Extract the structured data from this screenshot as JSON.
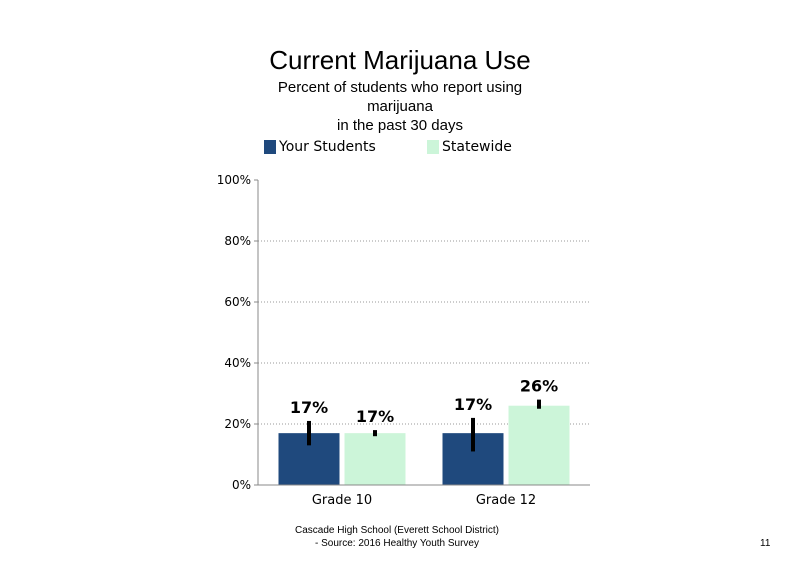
{
  "title": "Current Marijuana Use",
  "subtitle_lines": [
    "Percent of students who report using",
    "marijuana",
    "in the past 30 days"
  ],
  "legend": [
    {
      "label": "Your Students",
      "color": "#1f497d"
    },
    {
      "label": "Statewide",
      "color": "#ccf5d9"
    }
  ],
  "footer": {
    "line1": "Cascade High School (Everett School District)",
    "line2": "- Source: 2016 Healthy  Youth Survey"
  },
  "page_number": "11",
  "chart_data": {
    "type": "bar",
    "title": "Current Marijuana Use",
    "subtitle": "Percent of students who report using marijuana in the past 30 days",
    "categories": [
      "Grade 10",
      "Grade 12"
    ],
    "series": [
      {
        "name": "Your Students",
        "color": "#1f497d",
        "values": [
          17,
          17
        ],
        "labels": [
          "17%",
          "17%"
        ],
        "error": [
          [
            13,
            21
          ],
          [
            11,
            22
          ]
        ]
      },
      {
        "name": "Statewide",
        "color": "#ccf5d9",
        "values": [
          17,
          26
        ],
        "labels": [
          "17%",
          "26%"
        ],
        "error": [
          [
            16,
            18
          ],
          [
            25,
            28
          ]
        ]
      }
    ],
    "ylim": [
      0,
      100
    ],
    "yticks": [
      0,
      20,
      40,
      60,
      80,
      100
    ],
    "ytick_labels": [
      "0%",
      "20%",
      "40%",
      "60%",
      "80%",
      "100%"
    ],
    "grid": true,
    "legend_position": "top"
  }
}
